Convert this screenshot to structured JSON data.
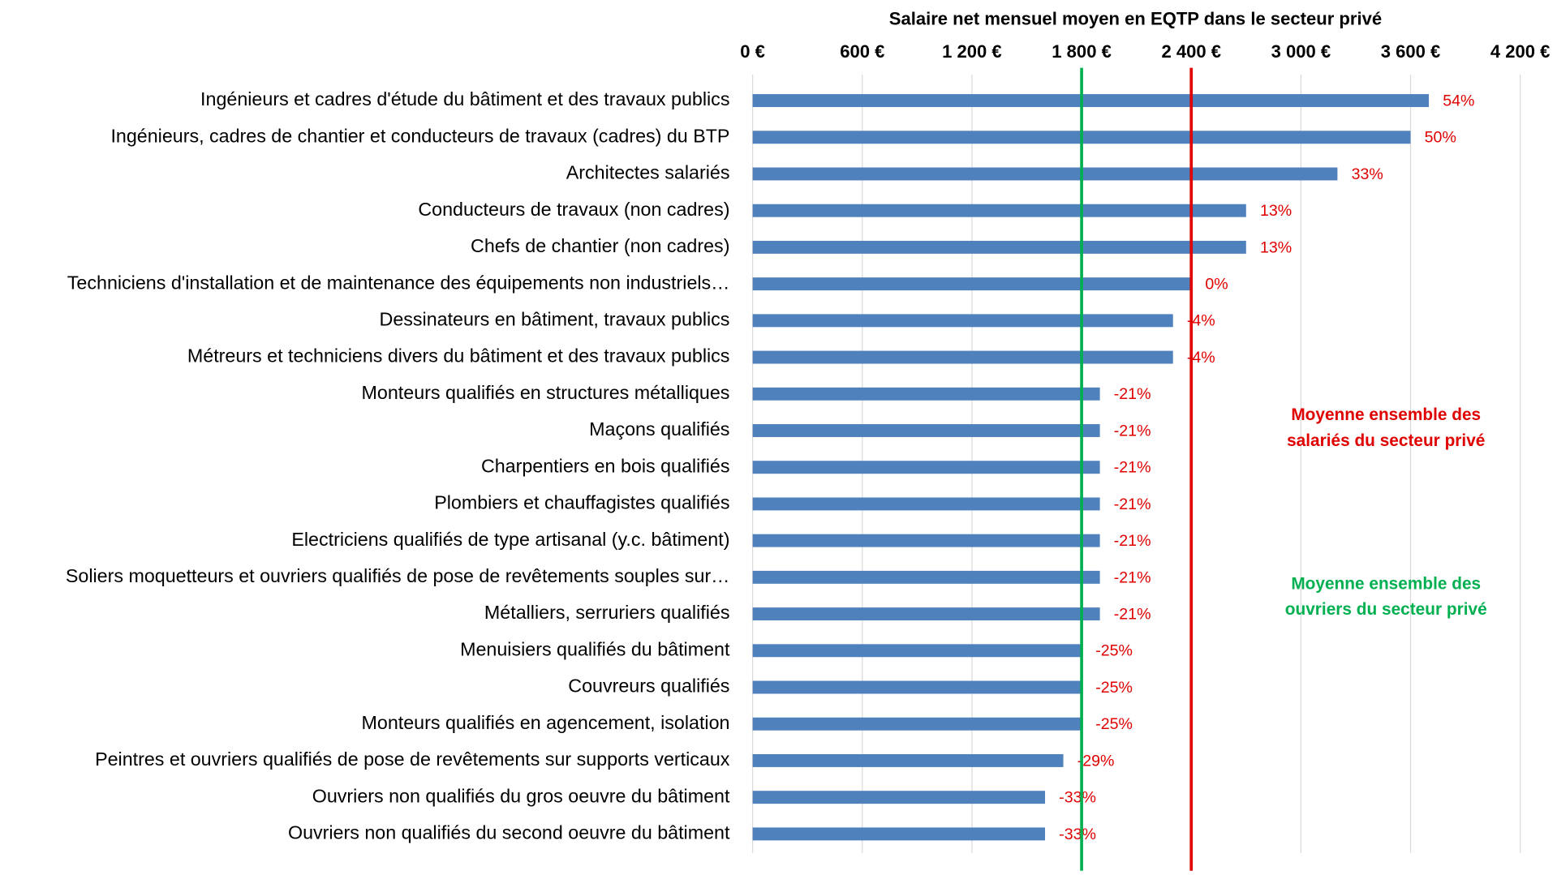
{
  "chart_data": {
    "type": "bar",
    "orientation": "horizontal",
    "title": "Salaire net mensuel moyen en EQTP dans le secteur privé",
    "categories": [
      "Ingénieurs et cadres d'étude du bâtiment et des travaux publics",
      "Ingénieurs, cadres de chantier et conducteurs de travaux (cadres) du BTP",
      "Architectes salariés",
      "Conducteurs de travaux (non cadres)",
      "Chefs de chantier (non cadres)",
      "Techniciens d'installation et de maintenance des équipements non industriels…",
      "Dessinateurs en bâtiment, travaux publics",
      "Métreurs et techniciens divers du bâtiment et des travaux publics",
      "Monteurs qualifiés en structures métalliques",
      "Maçons qualifiés",
      "Charpentiers en bois qualifiés",
      "Plombiers et chauffagistes qualifiés",
      "Electriciens qualifiés de type artisanal (y.c. bâtiment)",
      "Soliers moquetteurs et ouvriers qualifiés de pose de revêtements souples sur…",
      "Métalliers, serruriers qualifiés",
      "Menuisiers qualifiés du bâtiment",
      "Couvreurs qualifiés",
      "Monteurs qualifiés en agencement, isolation",
      "Peintres et ouvriers qualifiés de pose de revêtements sur supports verticaux",
      "Ouvriers non qualifiés du gros oeuvre du bâtiment",
      "Ouvriers non qualifiés du second oeuvre du bâtiment"
    ],
    "values": [
      3700,
      3600,
      3200,
      2700,
      2700,
      2400,
      2300,
      2300,
      1900,
      1900,
      1900,
      1900,
      1900,
      1900,
      1900,
      1800,
      1800,
      1800,
      1700,
      1600,
      1600
    ],
    "deviation_labels": [
      "54%",
      "50%",
      "33%",
      "13%",
      "13%",
      "0%",
      "-4%",
      "-4%",
      "-21%",
      "-21%",
      "-21%",
      "-21%",
      "-21%",
      "-21%",
      "-21%",
      "-25%",
      "-25%",
      "-25%",
      "-29%",
      "-33%",
      "-33%"
    ],
    "color": "#4f81bd",
    "xlim": [
      0,
      4200
    ],
    "xticks": [
      {
        "value": 0,
        "label": "0 €"
      },
      {
        "value": 600,
        "label": "600 €"
      },
      {
        "value": 1200,
        "label": "1 200 €"
      },
      {
        "value": 1800,
        "label": "1 800 €"
      },
      {
        "value": 2400,
        "label": "2 400 €"
      },
      {
        "value": 3000,
        "label": "3 000 €"
      },
      {
        "value": 3600,
        "label": "3 600 €"
      },
      {
        "value": 4200,
        "label": "4 200 €"
      }
    ],
    "grid": true,
    "reference_lines": [
      {
        "value": 2400,
        "color": "#e00000",
        "label": [
          "Moyenne ensemble des",
          "salariés du secteur privé"
        ]
      },
      {
        "value": 1800,
        "color": "#00b050",
        "label": [
          "Moyenne ensemble des",
          "ouvriers du secteur privé"
        ]
      }
    ]
  }
}
